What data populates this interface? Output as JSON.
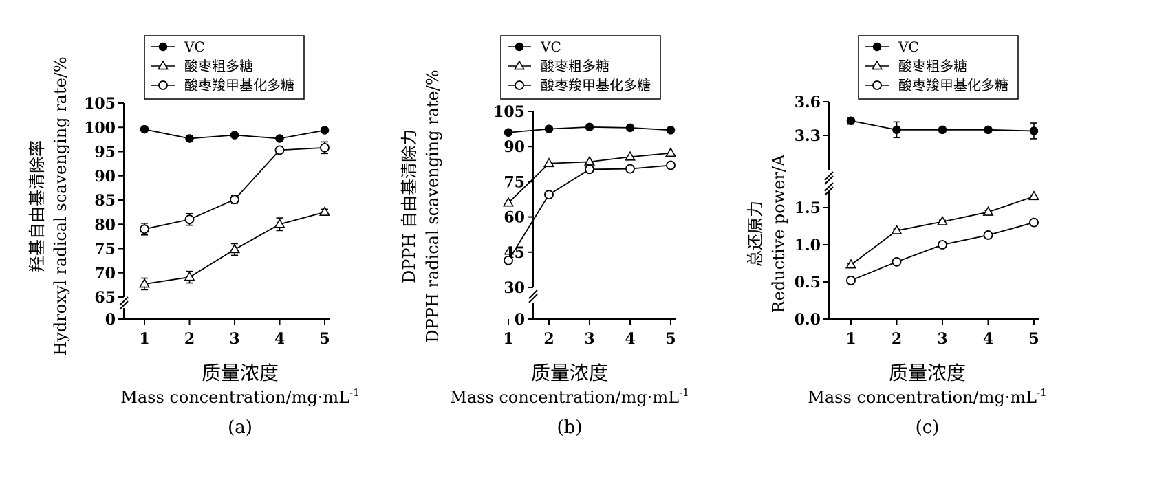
{
  "chart_data": [
    {
      "type": "line",
      "panel_label": "(a)",
      "ylabel_cn": "羟基自由基清除率",
      "ylabel_en": "Hydroxyl radical scavenging rate/%",
      "xlabel_cn": "质量浓度",
      "xlabel_en": "Mass concentration/mg·mL",
      "xlabel_sup": "-1",
      "x": [
        1,
        2,
        3,
        4,
        5
      ],
      "x_ticks": [
        "1",
        "2",
        "3",
        "4",
        "5"
      ],
      "y_ticks": [
        65,
        70,
        75,
        80,
        85,
        90,
        95,
        100,
        105
      ],
      "y_ticks_labels": [
        "65",
        "70",
        "75",
        "80",
        "85",
        "90",
        "95",
        "100",
        "105"
      ],
      "y_zero_label": "0",
      "ylim": [
        65,
        105
      ],
      "axis_break": true,
      "legend_position": "top",
      "series": [
        {
          "name": "VC",
          "marker": "filled-circle",
          "values": [
            99.6,
            97.7,
            98.4,
            97.7,
            99.4
          ],
          "errors": [
            0.3,
            0.3,
            0.3,
            0.3,
            0.3
          ]
        },
        {
          "name": "酸枣粗多糖",
          "marker": "triangle",
          "values": [
            67.7,
            69.1,
            74.8,
            80.0,
            82.5
          ],
          "errors": [
            1.2,
            1.2,
            1.2,
            1.3,
            0.6
          ]
        },
        {
          "name": "酸枣羧甲基化多糖",
          "marker": "open-circle",
          "values": [
            79.0,
            81.0,
            85.1,
            95.3,
            95.8
          ],
          "errors": [
            1.2,
            1.2,
            0.8,
            0.4,
            1.2
          ]
        }
      ]
    },
    {
      "type": "line",
      "panel_label": "(b)",
      "ylabel_cn": "DPPH 自由基清除力",
      "ylabel_en": "DPPH radical scavenging rate/%",
      "xlabel_cn": "质量浓度",
      "xlabel_en": "Mass concentration/mg·mL",
      "xlabel_sup": "-1",
      "x": [
        1,
        2,
        3,
        4,
        5
      ],
      "x_ticks": [
        "1",
        "2",
        "3",
        "4",
        "5"
      ],
      "y_ticks": [
        30,
        45,
        60,
        75,
        90,
        105
      ],
      "y_ticks_labels": [
        "30",
        "45",
        "60",
        "75",
        "90",
        "105"
      ],
      "y_zero_label": "0",
      "ylim": [
        30,
        105
      ],
      "axis_break": true,
      "legend_position": "top",
      "series": [
        {
          "name": "VC",
          "marker": "filled-circle",
          "values": [
            96.0,
            97.5,
            98.3,
            98.0,
            97.0
          ],
          "errors": [
            0.5,
            0.5,
            0.5,
            0.5,
            0.5
          ]
        },
        {
          "name": "酸枣粗多糖",
          "marker": "triangle",
          "values": [
            66.0,
            82.8,
            83.5,
            85.6,
            87.2
          ],
          "errors": [
            0.8,
            0.8,
            0.8,
            0.8,
            0.8
          ]
        },
        {
          "name": "酸枣羧甲基化多糖",
          "marker": "open-circle",
          "values": [
            41.5,
            69.5,
            80.3,
            80.5,
            82.0
          ],
          "errors": [
            0.8,
            0.8,
            0.8,
            0.8,
            0.8
          ]
        }
      ]
    },
    {
      "type": "line",
      "panel_label": "(c)",
      "ylabel_cn": "总还原力",
      "ylabel_en": "Reductive power/A",
      "xlabel_cn": "质量浓度",
      "xlabel_en": "Mass concentration/mg·mL",
      "xlabel_sup": "-1",
      "x": [
        1,
        2,
        3,
        4,
        5
      ],
      "x_ticks": [
        "1",
        "2",
        "3",
        "4",
        "5"
      ],
      "y_ticks_lower": [
        0.0,
        0.5,
        1.0,
        1.5
      ],
      "y_ticks_lower_labels": [
        "0.0",
        "0.5",
        "1.0",
        "1.5"
      ],
      "y_ticks_upper": [
        3.3,
        3.6
      ],
      "y_ticks_upper_labels": [
        "3.3",
        "3.6"
      ],
      "ylim_lower": [
        0.0,
        1.75
      ],
      "ylim_upper": [
        3.0,
        3.6
      ],
      "axis_break": true,
      "legend_position": "top",
      "series": [
        {
          "name": "VC",
          "marker": "filled-circle",
          "values": [
            3.43,
            3.35,
            3.35,
            3.35,
            3.34
          ],
          "errors": [
            0.03,
            0.07,
            0.02,
            0.02,
            0.07
          ]
        },
        {
          "name": "酸枣粗多糖",
          "marker": "triangle",
          "values": [
            0.73,
            1.19,
            1.31,
            1.44,
            1.65
          ],
          "errors": [
            0.02,
            0.02,
            0.02,
            0.02,
            0.02
          ]
        },
        {
          "name": "酸枣羧甲基化多糖",
          "marker": "open-circle",
          "values": [
            0.52,
            0.77,
            1.0,
            1.13,
            1.3
          ],
          "errors": [
            0.02,
            0.02,
            0.04,
            0.03,
            0.02
          ]
        }
      ]
    }
  ]
}
